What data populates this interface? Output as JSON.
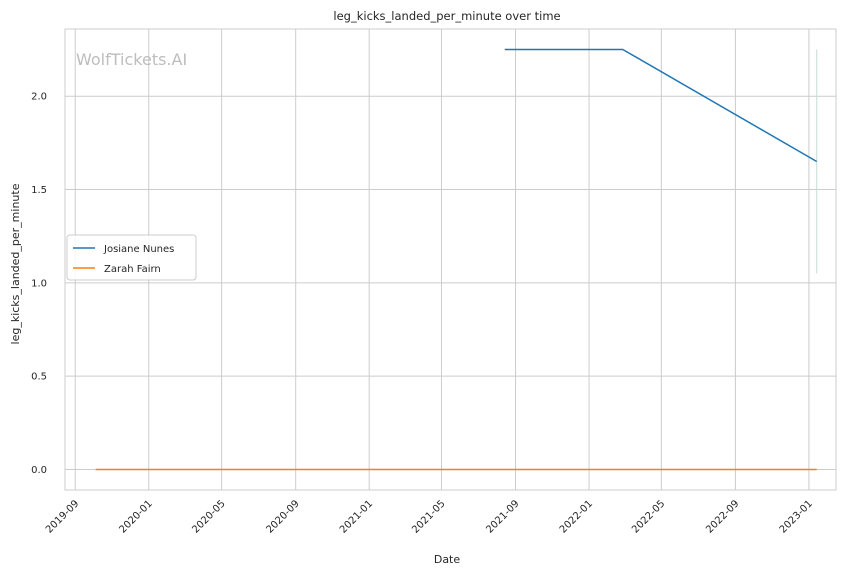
{
  "chart_data": {
    "type": "line",
    "title": "leg_kicks_landed_per_minute over time",
    "xlabel": "Date",
    "ylabel": "leg_kicks_landed_per_minute",
    "watermark": "WolfTickets.AI",
    "x_ticks": [
      "2019-09",
      "2020-01",
      "2020-05",
      "2020-09",
      "2021-01",
      "2021-05",
      "2021-09",
      "2022-01",
      "2022-05",
      "2022-09",
      "2023-01"
    ],
    "y_ticks": [
      "0.0",
      "0.5",
      "1.0",
      "1.5",
      "2.0"
    ],
    "xlim": [
      "2019-08-15",
      "2023-02-15"
    ],
    "ylim": [
      -0.11,
      2.36
    ],
    "grid": true,
    "legend_position": "center-left",
    "series": [
      {
        "name": "Josiane Nunes",
        "color": "#1f77b4",
        "x": [
          "2021-08-14",
          "2022-02-26",
          "2023-01-14"
        ],
        "y": [
          2.25,
          2.25,
          1.65
        ]
      },
      {
        "name": "Zarah Fairn",
        "color": "#ff7f0e",
        "x": [
          "2019-10-05",
          "2023-01-14"
        ],
        "y": [
          0.0,
          0.0
        ]
      }
    ],
    "error_bar": {
      "x": "2023-01-14",
      "y_low": 1.05,
      "y_high": 2.25,
      "color": "#c8ddd2"
    }
  }
}
